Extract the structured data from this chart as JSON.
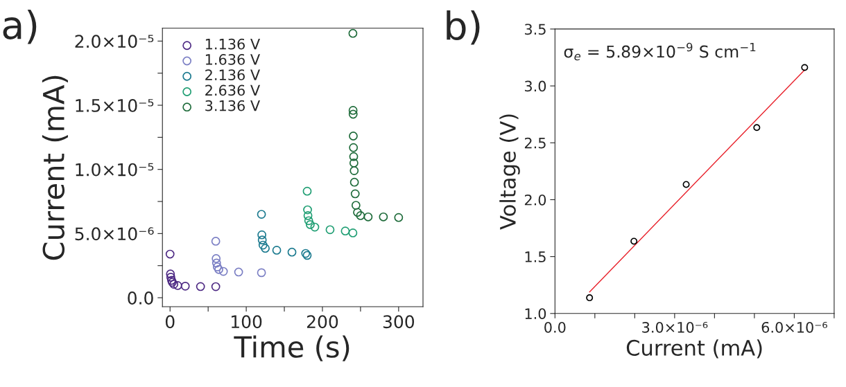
{
  "chart_data": [
    {
      "type": "scatter",
      "xlabel": "Time (s)",
      "ylabel": "Current (mA)",
      "marker": "circle",
      "legend": "top left",
      "grid": false,
      "annotations": [
        "a)"
      ],
      "xlim": [
        -10,
        332
      ],
      "xticks": [
        0,
        {
          "value": 50,
          "label": null
        },
        100,
        {
          "value": 150,
          "label": null
        },
        200,
        {
          "value": 250,
          "label": null
        },
        300
      ],
      "ylim": [
        -7e-07,
        2.1e-05
      ],
      "yticks": [
        {
          "value": 0,
          "label": "0.0"
        },
        {
          "value": 2.5e-06,
          "label": null
        },
        {
          "value": 5e-06,
          "label": "5.0×10⁻⁶"
        },
        {
          "value": 7.5e-06,
          "label": null
        },
        {
          "value": 1e-05,
          "label": "1.0×10⁻⁵"
        },
        {
          "value": 1.25e-05,
          "label": null
        },
        {
          "value": 1.5e-05,
          "label": "1.5×10⁻⁵"
        },
        {
          "value": 1.75e-05,
          "label": null
        },
        {
          "value": 2e-05,
          "label": "2.0×10⁻⁵"
        }
      ],
      "series": [
        {
          "name": "1.136 V",
          "color": "#4e2a84",
          "x": [
            0,
            0.5,
            1,
            2,
            3,
            5,
            10,
            20,
            40,
            60
          ],
          "values": [
            3.4e-06,
            1.85e-06,
            1.6e-06,
            1.35e-06,
            1.2e-06,
            1.05e-06,
            9.5e-07,
            9e-07,
            8.7e-07,
            8.6e-07
          ]
        },
        {
          "name": "1.636 V",
          "color": "#7b7fc4",
          "x": [
            60,
            60.5,
            61,
            62,
            64,
            70,
            90,
            120
          ],
          "values": [
            4.4e-06,
            3.05e-06,
            2.7e-06,
            2.4e-06,
            2.2e-06,
            2.05e-06,
            2e-06,
            1.95e-06
          ]
        },
        {
          "name": "2.136 V",
          "color": "#1b7a8f",
          "x": [
            120,
            120.5,
            121,
            122,
            125,
            140,
            160,
            178,
            180
          ],
          "values": [
            6.5e-06,
            4.9e-06,
            4.5e-06,
            4.1e-06,
            3.85e-06,
            3.7e-06,
            3.55e-06,
            3.45e-06,
            3.3e-06
          ]
        },
        {
          "name": "2.636 V",
          "color": "#1f9e73",
          "x": [
            180,
            180.5,
            181,
            182,
            184,
            190,
            210,
            230,
            240
          ],
          "values": [
            8.3e-06,
            6.85e-06,
            6.4e-06,
            6e-06,
            5.7e-06,
            5.5e-06,
            5.3e-06,
            5.2e-06,
            5.05e-06
          ]
        },
        {
          "name": "3.136 V",
          "color": "#1e6b3a",
          "x": [
            240,
            240.2,
            240.3,
            240.5,
            240.7,
            241,
            241.3,
            241.7,
            242,
            243,
            244,
            246,
            250,
            260,
            280,
            300
          ],
          "values": [
            2.06e-05,
            1.46e-05,
            1.43e-05,
            1.26e-05,
            1.17e-05,
            1.1e-05,
            1.05e-05,
            9.9e-06,
            9e-06,
            8.1e-06,
            7.2e-06,
            6.65e-06,
            6.4e-06,
            6.3e-06,
            6.3e-06,
            6.25e-06
          ]
        }
      ]
    },
    {
      "type": "scatter",
      "xlabel": "Current (mA)",
      "ylabel": "Voltage (V)",
      "marker": "circle",
      "grid": false,
      "annotations": [
        "b)",
        "σ$_{e}$ = 5.89×10$^{−9}$ S cm$^{−1}$"
      ],
      "xlim": [
        0,
        7e-06
      ],
      "xticks": [
        {
          "value": 0,
          "label": "0.0"
        },
        {
          "value": 1e-06,
          "label": null
        },
        {
          "value": 2e-06,
          "label": null
        },
        {
          "value": 3e-06,
          "label": "3.0×10⁻⁶"
        },
        {
          "value": 4e-06,
          "label": null
        },
        {
          "value": 5e-06,
          "label": null
        },
        {
          "value": 6e-06,
          "label": "6.0×10⁻⁶"
        },
        {
          "value": 7e-06,
          "label": null
        }
      ],
      "ylim": [
        1.0,
        3.5
      ],
      "yticks": [
        {
          "value": 1.0,
          "label": "1.0"
        },
        {
          "value": 1.5,
          "label": "1.5"
        },
        {
          "value": 2.0,
          "label": "2.0"
        },
        {
          "value": 2.5,
          "label": "2.5"
        },
        {
          "value": 3.0,
          "label": "3.0"
        },
        {
          "value": 3.5,
          "label": "3.5"
        }
      ],
      "series": [
        {
          "color": "#000000",
          "x": [
            8.67e-07,
            1.98e-06,
            3.29e-06,
            5.06e-06,
            6.26e-06
          ],
          "values": [
            1.138,
            1.635,
            2.134,
            2.634,
            3.162
          ]
        },
        {
          "type": "line",
          "color": "#e8202a",
          "line_style": "solid",
          "marker": "none",
          "x": [
            8.67e-07,
            6.26e-06
          ],
          "values": [
            1.189,
            3.141
          ]
        }
      ]
    }
  ]
}
